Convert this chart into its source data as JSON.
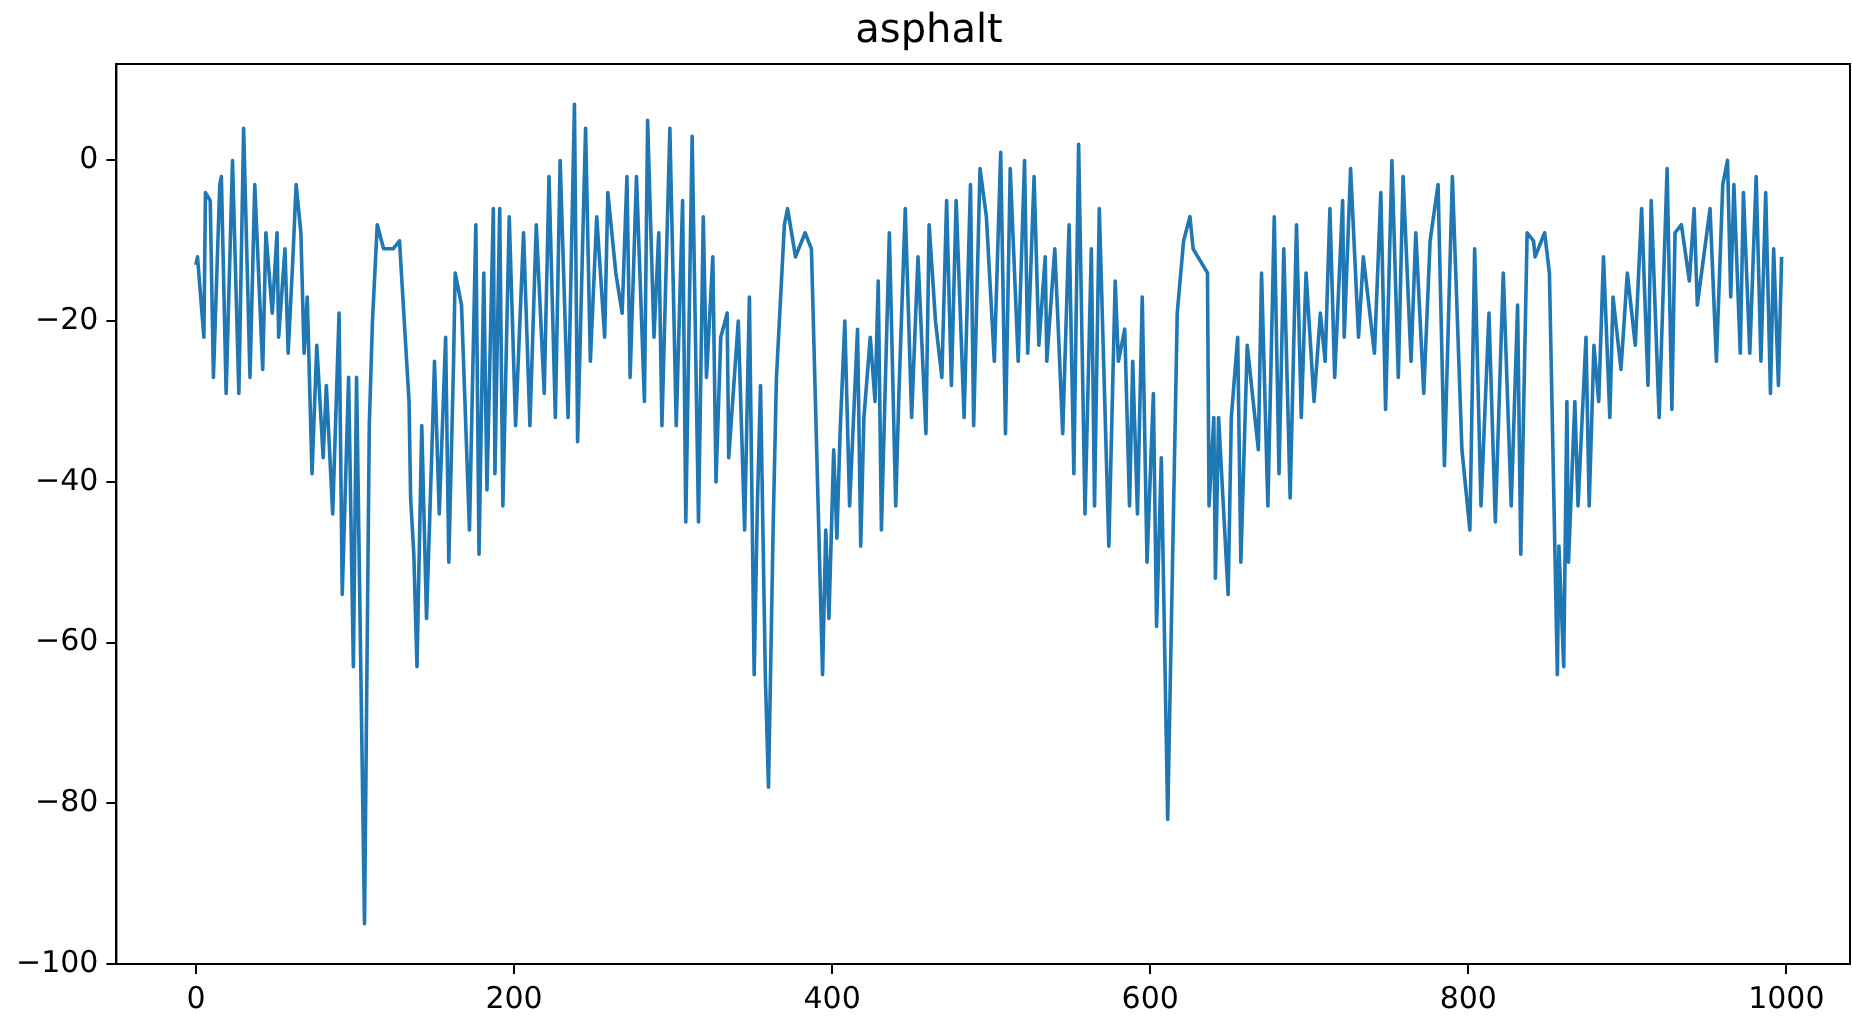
{
  "chart_data": {
    "type": "line",
    "title": "asphalt",
    "xlim": [
      -50,
      1040
    ],
    "ylim": [
      -100,
      12
    ],
    "xticks": [
      0,
      200,
      400,
      600,
      800,
      1000
    ],
    "yticks": [
      -100,
      -80,
      -60,
      -40,
      -20,
      0
    ],
    "legend": false,
    "marker": "none",
    "line_style": "solid",
    "series": [
      {
        "color": "#1f77b4",
        "x": [
          0,
          1,
          5,
          6,
          9,
          11,
          15,
          16,
          19,
          23,
          27,
          30,
          34,
          37,
          42,
          44,
          48,
          51,
          52,
          56,
          58,
          61,
          63,
          66,
          68,
          70,
          73,
          76,
          80,
          82,
          86,
          90,
          92,
          96,
          99,
          101,
          106,
          109,
          111,
          114,
          118,
          124,
          128,
          134,
          135,
          137,
          139,
          142,
          145,
          149,
          150,
          153,
          157,
          159,
          162,
          163,
          167,
          172,
          176,
          178,
          181,
          183,
          187,
          188,
          191,
          193,
          197,
          201,
          206,
          210,
          214,
          219,
          222,
          226,
          229,
          234,
          238,
          240,
          245,
          248,
          252,
          257,
          259,
          264,
          268,
          271,
          273,
          277,
          282,
          284,
          288,
          291,
          293,
          298,
          302,
          306,
          308,
          312,
          316,
          319,
          321,
          325,
          327,
          330,
          334,
          335,
          341,
          345,
          348,
          351,
          353,
          355,
          358,
          360,
          363,
          365,
          370,
          372,
          377,
          383,
          387,
          394,
          396,
          398,
          401,
          403,
          405,
          408,
          411,
          416,
          418,
          420,
          424,
          427,
          429,
          431,
          436,
          440,
          442,
          446,
          450,
          454,
          459,
          461,
          465,
          469,
          472,
          475,
          478,
          483,
          487,
          489,
          493,
          497,
          502,
          506,
          509,
          512,
          517,
          521,
          523,
          527,
          530,
          534,
          535,
          540,
          542,
          545,
          549,
          552,
          555,
          559,
          563,
          565,
          568,
          574,
          578,
          580,
          584,
          587,
          589,
          592,
          595,
          598,
          602,
          604,
          607,
          611,
          617,
          621,
          625,
          627,
          636,
          637,
          640,
          641,
          643,
          649,
          651,
          655,
          657,
          661,
          668,
          670,
          674,
          678,
          681,
          684,
          688,
          692,
          695,
          698,
          703,
          707,
          710,
          713,
          716,
          721,
          722,
          726,
          731,
          734,
          741,
          745,
          748,
          752,
          756,
          759,
          764,
          767,
          772,
          776,
          781,
          785,
          790,
          796,
          801,
          804,
          808,
          813,
          817,
          822,
          827,
          831,
          833,
          837,
          841,
          842,
          848,
          851,
          856,
          857,
          860,
          862,
          863,
          867,
          869,
          874,
          876,
          879,
          882,
          885,
          889,
          891,
          896,
          900,
          905,
          909,
          913,
          915,
          920,
          925,
          928,
          930,
          934,
          939,
          942,
          944,
          952,
          956,
          960,
          963,
          965,
          967,
          971,
          973,
          977,
          981,
          984,
          987,
          990,
          992,
          995,
          997
        ],
        "values": [
          -13,
          -12,
          -22,
          -4,
          -5,
          -27,
          -3,
          -2,
          -29,
          0,
          -29,
          4,
          -27,
          -3,
          -26,
          -9,
          -19,
          -9,
          -22,
          -11,
          -24,
          -12,
          -3,
          -9,
          -24,
          -17,
          -39,
          -23,
          -37,
          -28,
          -44,
          -19,
          -54,
          -27,
          -63,
          -27,
          -95,
          -33,
          -20,
          -8,
          -11,
          -11,
          -10,
          -30,
          -42,
          -49,
          -63,
          -33,
          -57,
          -32,
          -25,
          -44,
          -22,
          -50,
          -25,
          -14,
          -18,
          -46,
          -8,
          -49,
          -14,
          -41,
          -6,
          -39,
          -6,
          -43,
          -7,
          -33,
          -9,
          -33,
          -8,
          -29,
          -2,
          -32,
          0,
          -32,
          7,
          -35,
          4,
          -25,
          -7,
          -22,
          -4,
          -14,
          -19,
          -2,
          -27,
          -2,
          -30,
          5,
          -22,
          -9,
          -33,
          4,
          -33,
          -5,
          -45,
          3,
          -45,
          -7,
          -27,
          -12,
          -40,
          -22,
          -19,
          -37,
          -20,
          -46,
          -17,
          -64,
          -43,
          -28,
          -64,
          -78,
          -45,
          -27,
          -8,
          -6,
          -12,
          -9,
          -11,
          -64,
          -46,
          -57,
          -36,
          -47,
          -34,
          -20,
          -43,
          -21,
          -48,
          -32,
          -22,
          -30,
          -15,
          -46,
          -9,
          -43,
          -29,
          -6,
          -32,
          -12,
          -34,
          -8,
          -20,
          -27,
          -5,
          -28,
          -5,
          -32,
          -3,
          -33,
          -1,
          -7,
          -25,
          1,
          -34,
          -1,
          -25,
          0,
          -24,
          -2,
          -23,
          -12,
          -25,
          -11,
          -20,
          -34,
          -8,
          -39,
          2,
          -44,
          -11,
          -43,
          -6,
          -48,
          -15,
          -25,
          -21,
          -43,
          -25,
          -44,
          -17,
          -50,
          -29,
          -58,
          -37,
          -82,
          -19,
          -10,
          -7,
          -11,
          -14,
          -43,
          -32,
          -52,
          -32,
          -54,
          -32,
          -22,
          -50,
          -23,
          -36,
          -14,
          -43,
          -7,
          -39,
          -11,
          -42,
          -8,
          -32,
          -14,
          -30,
          -19,
          -25,
          -6,
          -27,
          -5,
          -22,
          -1,
          -22,
          -12,
          -24,
          -4,
          -31,
          0,
          -27,
          -2,
          -25,
          -9,
          -29,
          -10,
          -3,
          -38,
          -2,
          -36,
          -46,
          -11,
          -43,
          -19,
          -45,
          -14,
          -43,
          -18,
          -49,
          -9,
          -10,
          -12,
          -9,
          -14,
          -64,
          -48,
          -63,
          -30,
          -50,
          -30,
          -43,
          -22,
          -43,
          -23,
          -30,
          -12,
          -32,
          -17,
          -26,
          -14,
          -23,
          -6,
          -28,
          -5,
          -32,
          -1,
          -31,
          -9,
          -8,
          -15,
          -6,
          -18,
          -6,
          -25,
          -3,
          0,
          -17,
          -3,
          -24,
          -4,
          -24,
          -2,
          -25,
          -4,
          -29,
          -11,
          -28,
          -12
        ]
      }
    ]
  }
}
